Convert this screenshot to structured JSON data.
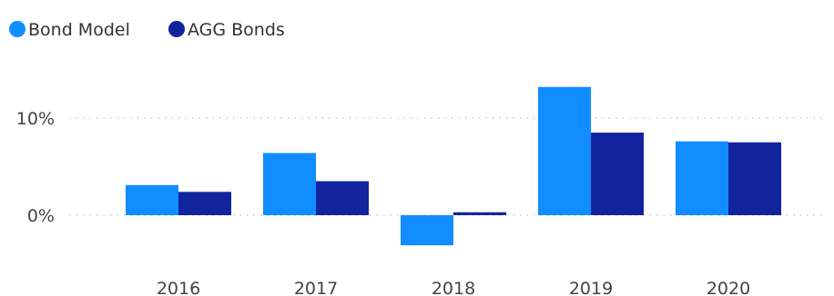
{
  "chart_data": {
    "type": "bar",
    "categories": [
      "2016",
      "2017",
      "2018",
      "2019",
      "2020"
    ],
    "series": [
      {
        "name": "Bond Model",
        "color": "#118DFF",
        "values": [
          3.1,
          6.4,
          -3.1,
          13.2,
          7.6
        ]
      },
      {
        "name": "AGG Bonds",
        "color": "#12239E",
        "values": [
          2.4,
          3.5,
          0.3,
          8.5,
          7.5
        ]
      }
    ],
    "ytick_values": [
      0,
      10
    ],
    "ytick_labels": [
      "0%",
      "10%"
    ],
    "ylim": [
      -4.5,
      15
    ],
    "grid": "horizontal-dotted",
    "legend_position": "top-left"
  }
}
